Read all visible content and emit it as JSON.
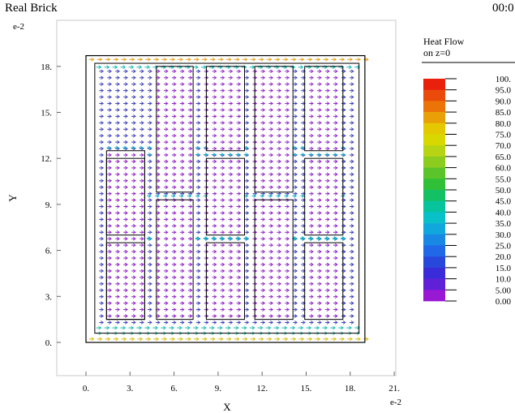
{
  "header": {
    "title": "Real Brick",
    "time": "00:0"
  },
  "chart_data": {
    "type": "vector-field",
    "xlabel": "X",
    "ylabel": "Y",
    "x_exponent": "e-2",
    "y_exponent": "e-2",
    "xlim": [
      -2,
      21
    ],
    "ylim": [
      -2.2,
      20.5
    ],
    "x_ticks": [
      "0.",
      "3.",
      "6.",
      "9.",
      "12.",
      "15.",
      "18.",
      "21."
    ],
    "x_tick_values": [
      0,
      3,
      6,
      9,
      12,
      15,
      18,
      21
    ],
    "y_ticks": [
      "0.",
      "3.",
      "6.",
      "9.",
      "12.",
      "15.",
      "18."
    ],
    "y_tick_values": [
      0,
      3,
      6,
      9,
      12,
      15,
      18
    ],
    "outer_boundary": [
      0,
      0,
      19,
      18.7
    ],
    "inner_boundary": [
      0.6,
      0.6,
      18.6,
      18.2
    ],
    "holes": [
      [
        1.4,
        1.5,
        4.0,
        12.5
      ],
      [
        1.4,
        7.0,
        4.0,
        12.0
      ],
      [
        1.4,
        1.5,
        4.0,
        6.5
      ],
      [
        4.8,
        9.8,
        7.3,
        18.0
      ],
      [
        4.8,
        1.5,
        7.3,
        9.3
      ],
      [
        8.2,
        12.5,
        10.8,
        18.0
      ],
      [
        8.2,
        7.0,
        10.8,
        12.0
      ],
      [
        8.2,
        1.5,
        10.8,
        6.5
      ],
      [
        11.5,
        9.8,
        14.1,
        18.0
      ],
      [
        11.5,
        1.5,
        14.1,
        9.3
      ],
      [
        14.9,
        12.5,
        17.5,
        18.0
      ],
      [
        14.9,
        7.0,
        17.5,
        12.0
      ],
      [
        14.9,
        1.5,
        17.5,
        6.5
      ]
    ],
    "legend": {
      "title": "Heat Flow",
      "subtitle": "on z=0",
      "labels": [
        "100.",
        "95.0",
        "90.0",
        "85.0",
        "80.0",
        "75.0",
        "70.0",
        "65.0",
        "60.0",
        "55.0",
        "50.0",
        "45.0",
        "40.0",
        "35.0",
        "30.0",
        "25.0",
        "20.0",
        "15.0",
        "10.0",
        "5.00",
        "0.00"
      ],
      "colors": [
        "#e8200c",
        "#ea4a0a",
        "#eb7308",
        "#e9a006",
        "#e4c802",
        "#d8d800",
        "#b6d414",
        "#8ccc1e",
        "#5ac42a",
        "#30c038",
        "#14c064",
        "#08c49c",
        "#08c0c8",
        "#10a8dc",
        "#1888e4",
        "#2068e8",
        "#2848dc",
        "#3a2cd8",
        "#6020d8",
        "#9818d4",
        "#d010d0"
      ]
    }
  }
}
